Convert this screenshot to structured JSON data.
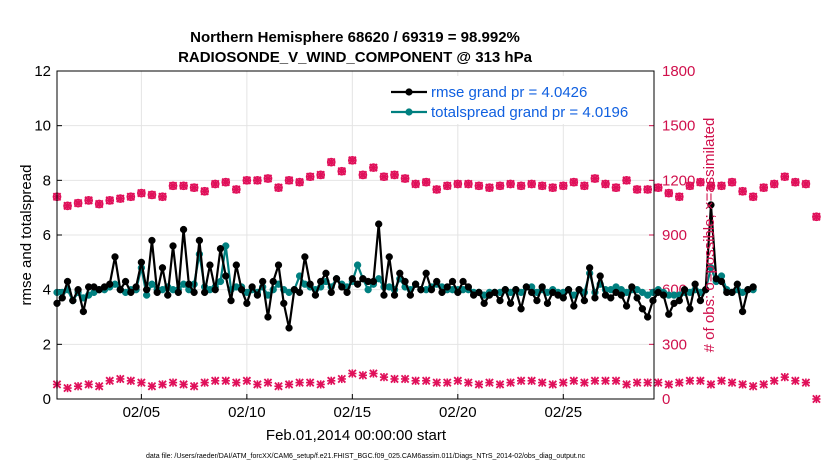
{
  "colors": {
    "rmse": "#000000",
    "spread": "#008080",
    "obs": "#e0105a",
    "legend_text": "#1060e0",
    "right_axis": "#d0104c"
  },
  "chart_data": {
    "type": "line",
    "title_line1": "Northern Hemisphere 68620 / 69319 = 98.992%",
    "title_line2": "RADIOSONDE_V_WIND_COMPONENT @ 313 hPa",
    "xlabel": "Feb.01,2014 00:00:00 start",
    "ylabel_left": "rmse and totalspread",
    "ylabel_right": "# of obs: o=possible; ×=assimilated",
    "footer": "data file: /Users/raeder/DAI/ATM_forcXX/CAM6_setup/f.e21.FHIST_BGC.f09_025.CAM6assim.011/Diags_NTrS_2014-02/obs_diag_output.nc",
    "xlim": [
      1.0,
      29.3
    ],
    "ylim_left": [
      0,
      12
    ],
    "ylim_right": [
      0,
      1800
    ],
    "x_ticks": [
      {
        "value": 5,
        "label": "02/05"
      },
      {
        "value": 10,
        "label": "02/10"
      },
      {
        "value": 15,
        "label": "02/15"
      },
      {
        "value": 20,
        "label": "02/20"
      },
      {
        "value": 25,
        "label": "02/25"
      }
    ],
    "y_ticks_left": [
      {
        "value": 0,
        "label": "0"
      },
      {
        "value": 2,
        "label": "2"
      },
      {
        "value": 4,
        "label": "4"
      },
      {
        "value": 6,
        "label": "6"
      },
      {
        "value": 8,
        "label": "8"
      },
      {
        "value": 10,
        "label": "10"
      },
      {
        "value": 12,
        "label": "12"
      }
    ],
    "y_ticks_right": [
      {
        "value": 0,
        "label": "0"
      },
      {
        "value": 300,
        "label": "300"
      },
      {
        "value": 600,
        "label": "600"
      },
      {
        "value": 900,
        "label": "900"
      },
      {
        "value": 1200,
        "label": "1200"
      },
      {
        "value": 1500,
        "label": "1500"
      },
      {
        "value": 1800,
        "label": "1800"
      }
    ],
    "legend": [
      {
        "key": "rmse",
        "label": "rmse grand pr = 4.0426"
      },
      {
        "key": "spread",
        "label": "totalspread grand pr = 4.0196"
      }
    ],
    "x_start": 1.0,
    "x_step": 0.25,
    "series": [
      {
        "name": "rmse",
        "axis": "left",
        "values": [
          3.5,
          3.7,
          4.3,
          3.6,
          4.0,
          3.2,
          4.1,
          4.1,
          4.0,
          4.1,
          4.2,
          5.2,
          4.0,
          4.3,
          3.9,
          4.1,
          5.0,
          4.0,
          5.8,
          3.9,
          4.8,
          3.8,
          5.6,
          3.9,
          6.2,
          4.2,
          3.9,
          5.8,
          3.9,
          4.9,
          4.0,
          5.5,
          4.5,
          3.6,
          4.9,
          4.0,
          3.5,
          4.1,
          3.8,
          4.3,
          3.0,
          4.3,
          4.9,
          3.5,
          2.6,
          4.0,
          3.9,
          5.2,
          4.2,
          3.8,
          4.3,
          4.6,
          3.9,
          4.4,
          4.1,
          3.9,
          4.4,
          4.2,
          4.4,
          4.3,
          4.3,
          6.4,
          3.8,
          5.2,
          3.8,
          4.6,
          4.3,
          3.8,
          4.2,
          4.0,
          4.6,
          4.0,
          4.3,
          3.9,
          4.1,
          4.3,
          3.9,
          4.3,
          4.1,
          3.8,
          3.9,
          3.5,
          3.8,
          3.9,
          3.6,
          4.0,
          3.5,
          4.0,
          3.3,
          4.1,
          3.9,
          3.6,
          4.1,
          3.5,
          3.9,
          3.8,
          3.7,
          4.0,
          3.4,
          4.0,
          3.6,
          4.8,
          3.7,
          4.5,
          3.8,
          3.7,
          3.9,
          3.8,
          3.4,
          4.1,
          3.7,
          3.3,
          3.0,
          3.6,
          3.9,
          3.8,
          3.1,
          3.5,
          3.6,
          4.0,
          3.3,
          4.2,
          3.6,
          4.0,
          7.1,
          4.4,
          4.3,
          3.9,
          3.9,
          4.2,
          3.2,
          4.0,
          4.1
        ]
      },
      {
        "name": "totalspread",
        "axis": "left",
        "values": [
          3.9,
          3.9,
          4.0,
          3.6,
          3.9,
          3.7,
          3.8,
          3.9,
          4.0,
          4.0,
          4.1,
          4.2,
          4.0,
          3.9,
          4.0,
          4.0,
          4.8,
          3.8,
          4.2,
          4.0,
          4.0,
          4.1,
          4.0,
          4.0,
          4.2,
          4.0,
          4.2,
          5.3,
          4.1,
          4.0,
          4.1,
          4.3,
          5.6,
          4.0,
          4.1,
          4.1,
          3.9,
          4.0,
          3.9,
          4.1,
          3.8,
          4.0,
          4.2,
          4.0,
          3.9,
          4.0,
          4.5,
          4.2,
          4.1,
          4.0,
          4.1,
          4.3,
          4.1,
          4.4,
          4.2,
          4.1,
          4.3,
          4.9,
          4.4,
          4.0,
          4.2,
          4.4,
          4.1,
          4.1,
          4.0,
          4.4,
          4.1,
          4.0,
          4.2,
          4.0,
          4.0,
          4.1,
          4.2,
          4.1,
          4.0,
          4.0,
          4.0,
          4.0,
          4.0,
          3.9,
          3.9,
          3.8,
          3.9,
          3.9,
          3.9,
          4.0,
          3.9,
          4.0,
          3.9,
          4.1,
          4.1,
          3.9,
          4.0,
          3.9,
          4.0,
          3.9,
          3.9,
          4.0,
          3.8,
          4.0,
          3.9,
          4.6,
          3.9,
          4.2,
          4.0,
          4.0,
          4.1,
          4.0,
          3.9,
          4.0,
          4.0,
          3.9,
          3.8,
          3.9,
          4.0,
          3.9,
          3.8,
          3.8,
          3.8,
          3.9,
          3.9,
          4.0,
          3.9,
          4.0,
          4.8,
          4.3,
          4.5,
          4.0,
          3.9,
          4.0,
          3.9,
          4.0,
          4.0
        ]
      },
      {
        "name": "obs possible",
        "axis": "right",
        "x_start": 1.0,
        "x_step": 0.5,
        "values": [
          1110,
          1060,
          1075,
          1090,
          1070,
          1090,
          1100,
          1110,
          1130,
          1120,
          1110,
          1170,
          1170,
          1160,
          1140,
          1180,
          1190,
          1150,
          1200,
          1200,
          1210,
          1160,
          1200,
          1190,
          1220,
          1230,
          1300,
          1250,
          1310,
          1230,
          1270,
          1220,
          1230,
          1210,
          1180,
          1190,
          1150,
          1170,
          1180,
          1180,
          1170,
          1160,
          1170,
          1180,
          1170,
          1180,
          1170,
          1160,
          1170,
          1190,
          1170,
          1210,
          1180,
          1160,
          1200,
          1150,
          1150,
          1160,
          1130,
          1110,
          1170,
          1190,
          1170,
          1170,
          1190,
          1140,
          1110,
          1160,
          1180,
          1220,
          1190,
          1180,
          1000
        ]
      },
      {
        "name": "obs assimilated",
        "axis": "right",
        "x_start": 1.0,
        "x_step": 0.5,
        "values": [
          80,
          60,
          70,
          80,
          70,
          100,
          110,
          100,
          90,
          70,
          80,
          90,
          80,
          70,
          90,
          100,
          100,
          90,
          100,
          80,
          90,
          70,
          80,
          90,
          90,
          80,
          100,
          110,
          140,
          130,
          140,
          120,
          110,
          110,
          100,
          100,
          90,
          90,
          100,
          90,
          80,
          90,
          80,
          90,
          100,
          100,
          90,
          80,
          90,
          100,
          90,
          100,
          100,
          100,
          80,
          90,
          90,
          90,
          80,
          90,
          100,
          100,
          80,
          100,
          90,
          80,
          70,
          80,
          100,
          120,
          100,
          90,
          0
        ]
      }
    ]
  }
}
